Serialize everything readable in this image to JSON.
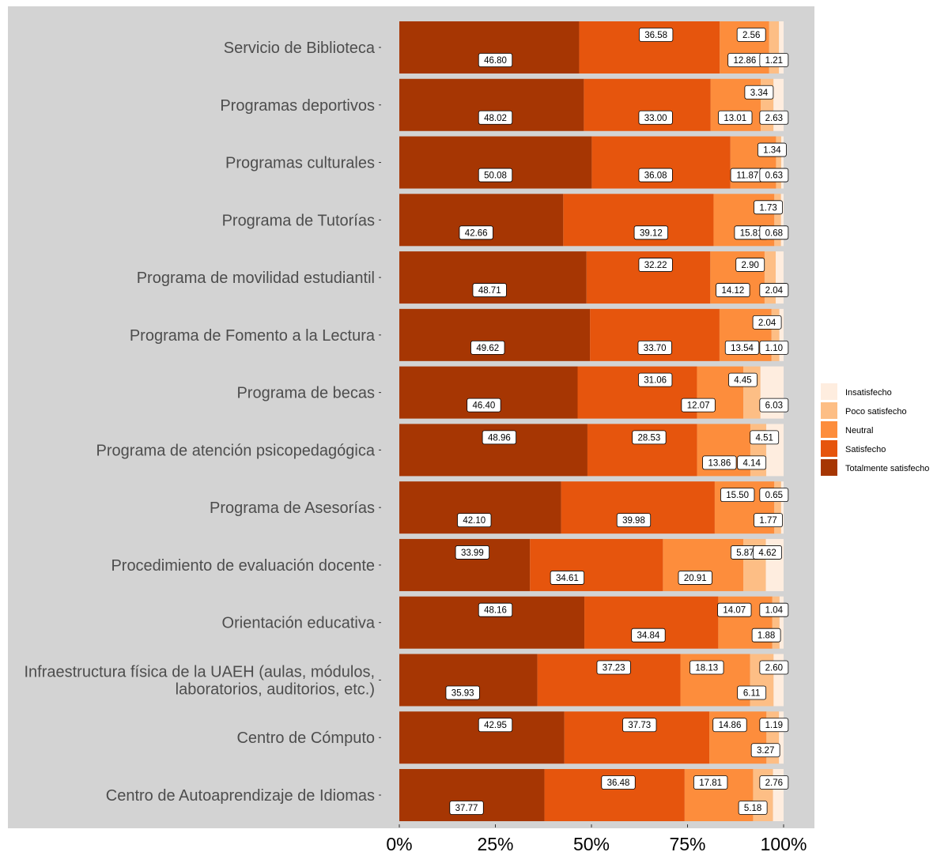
{
  "chart_data": {
    "type": "bar",
    "orientation": "horizontal",
    "stacked": "percent",
    "categories": [
      "Servicio de Biblioteca",
      "Programas deportivos",
      "Programas culturales",
      "Programa de Tutorías",
      "Programa de movilidad estudiantil",
      "Programa de Fomento a la Lectura",
      "Programa de becas",
      "Programa de atención psicopedagógica",
      "Programa de Asesorías",
      "Procedimiento de evaluación docente",
      "Orientación educativa",
      "Infraestructura física de la UAEH (aulas, módulos,\nlaboratorios, auditorios, etc.)",
      "Centro de Cómputo",
      "Centro de Autoaprendizaje de Idiomas"
    ],
    "series": [
      {
        "name": "Totalmente satisfecho",
        "color": "#a63603",
        "values": [
          46.8,
          48.02,
          50.08,
          42.66,
          48.71,
          49.62,
          46.4,
          48.96,
          42.1,
          33.99,
          48.16,
          35.93,
          42.95,
          37.77
        ]
      },
      {
        "name": "Satisfecho",
        "color": "#e6550d",
        "values": [
          36.58,
          33.0,
          36.08,
          39.12,
          32.22,
          33.7,
          31.06,
          28.53,
          39.98,
          34.61,
          34.84,
          37.23,
          37.73,
          36.48
        ]
      },
      {
        "name": "Neutral",
        "color": "#fd8d3c",
        "values": [
          12.86,
          13.01,
          11.87,
          15.81,
          14.12,
          13.54,
          12.07,
          13.86,
          15.5,
          20.91,
          14.07,
          18.13,
          14.86,
          17.81
        ]
      },
      {
        "name": "Poco satisfecho",
        "color": "#fdbe85",
        "values": [
          2.56,
          3.34,
          1.34,
          1.73,
          2.9,
          2.04,
          4.45,
          4.14,
          1.77,
          5.87,
          1.88,
          6.11,
          3.27,
          5.18
        ]
      },
      {
        "name": "Insatisfecho",
        "color": "#feeddf",
        "values": [
          1.21,
          2.63,
          0.63,
          0.68,
          2.04,
          1.1,
          6.03,
          4.51,
          0.65,
          4.62,
          1.04,
          2.6,
          1.19,
          2.76
        ]
      }
    ],
    "data_labels": {
      "texts": [
        [
          "46.80",
          "36.58",
          "12.86",
          "2.56",
          "1.21"
        ],
        [
          "48.02",
          "33.00",
          "13.01",
          "3.34",
          "2.63"
        ],
        [
          "50.08",
          "36.08",
          "11.87",
          "1.34",
          "0.63"
        ],
        [
          "42.66",
          "39.12",
          "15.81",
          "1.73",
          "0.68"
        ],
        [
          "48.71",
          "32.22",
          "14.12",
          "2.90",
          "2.04"
        ],
        [
          "49.62",
          "33.70",
          "13.54",
          "2.04",
          "1.10"
        ],
        [
          "46.40",
          "31.06",
          "12.07",
          "4.45",
          "6.03"
        ],
        [
          "48.96",
          "28.53",
          "13.86",
          "4.14",
          "4.51"
        ],
        [
          "42.10",
          "39.98",
          "15.50",
          "1.77",
          "0.65"
        ],
        [
          "33.99",
          "34.61",
          "20.91",
          "5.87",
          "4.62"
        ],
        [
          "48.16",
          "34.84",
          "14.07",
          "1.88",
          "1.04"
        ],
        [
          "35.93",
          "37.23",
          "18.13",
          "6.11",
          "2.60"
        ],
        [
          "42.95",
          "37.73",
          "14.86",
          "3.27",
          "1.19"
        ],
        [
          "37.77",
          "36.48",
          "17.81",
          "5.18",
          "2.76"
        ]
      ],
      "x_percent": [
        [
          25.0,
          66.8,
          89.9,
          91.6,
          97.5
        ],
        [
          25.0,
          66.7,
          87.4,
          93.6,
          97.5
        ],
        [
          25.0,
          66.7,
          90.6,
          97.0,
          97.5
        ],
        [
          20.0,
          65.5,
          91.6,
          96.0,
          97.5
        ],
        [
          23.5,
          66.7,
          86.8,
          91.3,
          97.5
        ],
        [
          23.0,
          66.5,
          89.2,
          95.7,
          97.5
        ],
        [
          22.0,
          66.6,
          77.8,
          89.4,
          97.5
        ],
        [
          26.0,
          65.0,
          83.3,
          91.7,
          95.0
        ],
        [
          19.5,
          61.0,
          88.0,
          96.0,
          97.5
        ],
        [
          19.0,
          43.7,
          77.0,
          90.0,
          95.8
        ],
        [
          25.0,
          64.8,
          87.2,
          95.5,
          97.5
        ],
        [
          16.5,
          55.8,
          80.0,
          91.7,
          97.5
        ],
        [
          25.0,
          62.5,
          86.0,
          95.3,
          97.5
        ],
        [
          17.5,
          57.0,
          81.0,
          92.0,
          97.5
        ]
      ],
      "row": [
        [
          1,
          0,
          1,
          0,
          1
        ],
        [
          1,
          1,
          1,
          0,
          1
        ],
        [
          1,
          1,
          1,
          0,
          1
        ],
        [
          1,
          1,
          1,
          0,
          1
        ],
        [
          1,
          0,
          1,
          0,
          1
        ],
        [
          1,
          1,
          1,
          0,
          1
        ],
        [
          1,
          0,
          1,
          0,
          1
        ],
        [
          0,
          0,
          1,
          1,
          0
        ],
        [
          1,
          1,
          0,
          1,
          0
        ],
        [
          0,
          1,
          1,
          0,
          0
        ],
        [
          0,
          1,
          0,
          1,
          0
        ],
        [
          1,
          0,
          0,
          1,
          0
        ],
        [
          0,
          0,
          0,
          1,
          0
        ],
        [
          1,
          0,
          0,
          1,
          0
        ]
      ]
    },
    "x_ticks": [
      "0%",
      "25%",
      "50%",
      "75%",
      "100%"
    ],
    "xlim": [
      0,
      100
    ],
    "legend": {
      "placement": "right",
      "entries": [
        "Insatisfecho",
        "Poco satisfecho",
        "Neutral",
        "Satisfecho",
        "Totalmente satisfecho"
      ]
    },
    "colors": {
      "panel_background": "#d3d3d3",
      "label_border": "#000000",
      "label_fill": "#ffffff"
    },
    "grid": false,
    "title": "",
    "xlabel": "",
    "ylabel": ""
  }
}
